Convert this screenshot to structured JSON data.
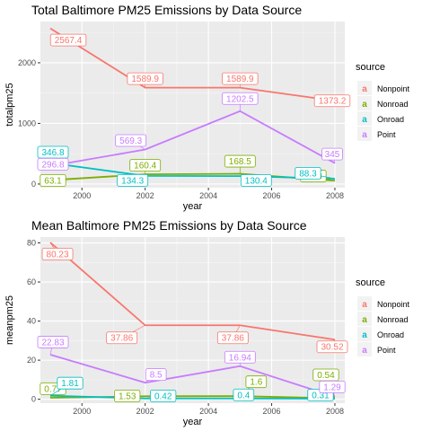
{
  "chart_data": [
    {
      "type": "line",
      "title": "Total Baltimore PM25 Emissions by Data Source",
      "xlabel": "year",
      "ylabel": "totalpm25",
      "xlim": [
        1999,
        2008
      ],
      "x_ticks": [
        2000,
        2002,
        2004,
        2006,
        2008
      ],
      "ylim": [
        -60,
        2680
      ],
      "y_ticks": [
        0,
        1000,
        2000
      ],
      "grid": true,
      "legend": {
        "title": "source",
        "placement": "right"
      },
      "x": [
        1999,
        2002,
        2005,
        2008
      ],
      "series": [
        {
          "name": "Nonpoint",
          "color": "#F8766D",
          "values": [
            2567.4,
            1589.9,
            1589.9,
            1373.2
          ],
          "labels": [
            "2567.4",
            "1589.9",
            "1589.9",
            "1373.2"
          ]
        },
        {
          "name": "Nonroad",
          "color": "#7CAE00",
          "values": [
            63.1,
            160.4,
            168.5,
            55.8
          ],
          "labels": [
            "63.1",
            "160.4",
            "168.5",
            "55.8"
          ]
        },
        {
          "name": "Onroad",
          "color": "#00BFC4",
          "values": [
            346.8,
            134.3,
            130.4,
            88.3
          ],
          "labels": [
            "346.8",
            "134.3",
            "130.4",
            "88.3"
          ]
        },
        {
          "name": "Point",
          "color": "#C77CFF",
          "values": [
            296.8,
            569.3,
            1202.5,
            345
          ],
          "labels": [
            "296.8",
            "569.3",
            "1202.5",
            "345"
          ]
        }
      ]
    },
    {
      "type": "line",
      "title": "Mean Baltimore PM25 Emissions by Data Source",
      "xlabel": "year",
      "ylabel": "meanpm25",
      "xlim": [
        1999,
        2008
      ],
      "x_ticks": [
        2000,
        2002,
        2004,
        2006,
        2008
      ],
      "ylim": [
        -2,
        83
      ],
      "y_ticks": [
        0,
        20,
        40,
        60,
        80
      ],
      "grid": true,
      "legend": {
        "title": "source",
        "placement": "right"
      },
      "x": [
        1999,
        2002,
        2005,
        2008
      ],
      "series": [
        {
          "name": "Nonpoint",
          "color": "#F8766D",
          "values": [
            80.23,
            37.86,
            37.86,
            30.52
          ],
          "labels": [
            "80.23",
            "37.86",
            "37.86",
            "30.52"
          ]
        },
        {
          "name": "Nonroad",
          "color": "#7CAE00",
          "values": [
            0.77,
            1.53,
            1.6,
            0.54
          ],
          "labels": [
            "0.77",
            "1.53",
            "1.6",
            "0.54"
          ]
        },
        {
          "name": "Onroad",
          "color": "#00BFC4",
          "values": [
            1.81,
            0.42,
            0.4,
            0.31
          ],
          "labels": [
            "1.81",
            "0.42",
            "0.4",
            "0.31"
          ]
        },
        {
          "name": "Point",
          "color": "#C77CFF",
          "values": [
            22.83,
            8.5,
            16.94,
            1.29
          ],
          "labels": [
            "22.83",
            "8.5",
            "16.94",
            "1.29"
          ]
        }
      ]
    }
  ]
}
